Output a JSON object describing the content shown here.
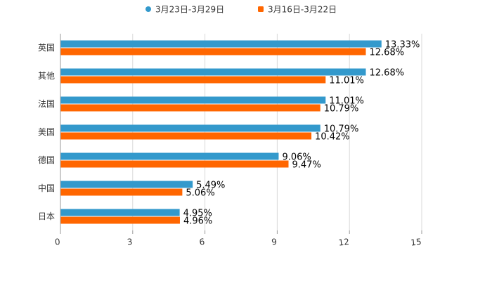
{
  "chart_data": {
    "type": "bar",
    "orientation": "horizontal",
    "categories": [
      "英国",
      "其他",
      "法国",
      "美国",
      "德国",
      "中国",
      "日本"
    ],
    "series": [
      {
        "name": "3月23日-3月29日",
        "color": "#3399cc",
        "values": [
          13.33,
          12.68,
          11.01,
          10.79,
          9.06,
          5.49,
          4.95
        ],
        "labels": [
          "13.33%",
          "12.68%",
          "11.01%",
          "10.79%",
          "9.06%",
          "5.49%",
          "4.95%"
        ]
      },
      {
        "name": "3月16日-3月22日",
        "color": "#ff6600",
        "values": [
          12.68,
          11.01,
          10.79,
          10.42,
          9.47,
          5.06,
          4.96
        ],
        "labels": [
          "12.68%",
          "11.01%",
          "10.79%",
          "10.42%",
          "9.47%",
          "5.06%",
          "4.96%"
        ]
      }
    ],
    "xlim": [
      0,
      15
    ],
    "ticks": [
      0,
      3,
      6,
      9,
      12,
      15
    ],
    "tick_labels": [
      "0",
      "3",
      "6",
      "9",
      "12",
      "15"
    ],
    "grid": true,
    "legend": "top-center",
    "title": "",
    "xlabel": "",
    "ylabel": ""
  }
}
